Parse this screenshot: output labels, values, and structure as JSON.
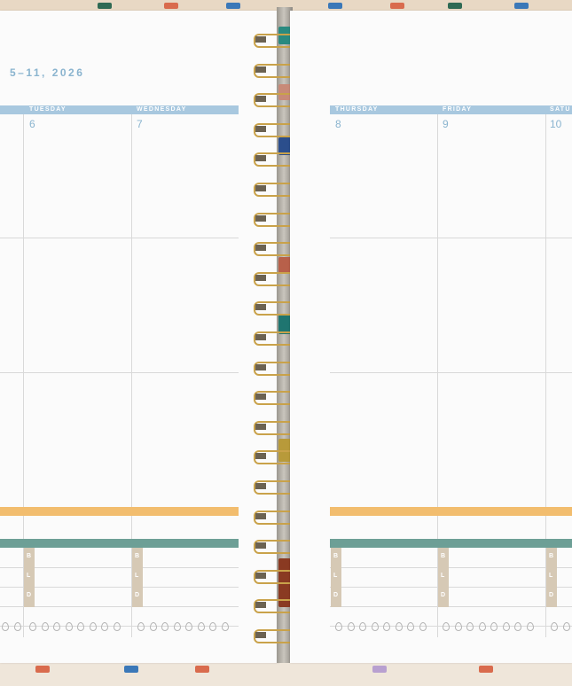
{
  "week": {
    "date_range": "5–11, 2026"
  },
  "left_page": {
    "days": [
      {
        "name": "TUESDAY",
        "number": "6"
      },
      {
        "name": "WEDNESDAY",
        "number": "7"
      }
    ]
  },
  "right_page": {
    "days": [
      {
        "name": "THURSDAY",
        "number": "8"
      },
      {
        "name": "FRIDAY",
        "number": "9"
      },
      {
        "name": "SATU",
        "number": "10"
      }
    ]
  },
  "meals": {
    "b": "B",
    "l": "L",
    "d": "D"
  },
  "colors": {
    "day_header": "#a8c8df",
    "orange_band": "#f2bd6e",
    "teal_band": "#6d9f96",
    "meal_tab": "#d6c9b5",
    "spiral_gold": "#c9a24a"
  }
}
